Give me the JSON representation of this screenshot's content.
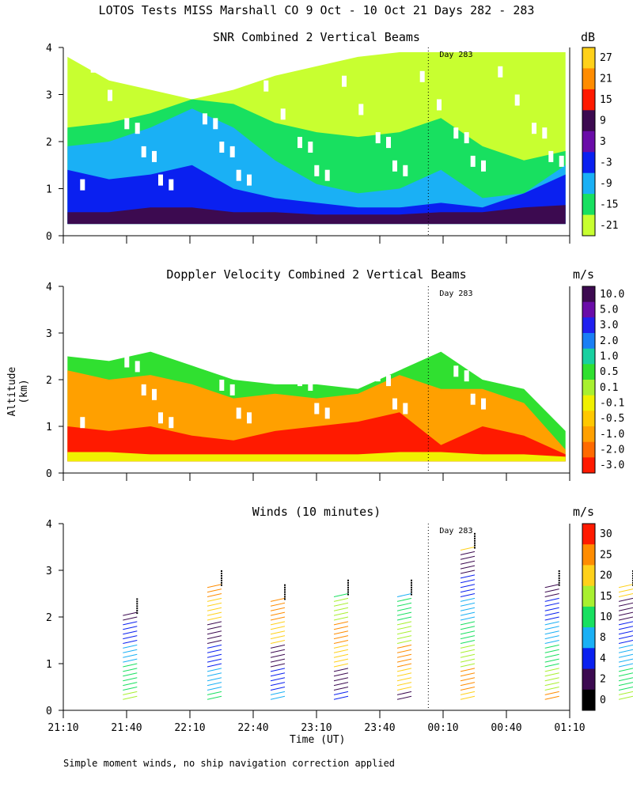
{
  "chart_data": [
    {
      "type": "heatmap",
      "title": "SNR Combined 2 Vertical Beams",
      "unit": "dB",
      "ylim": [
        0,
        4
      ],
      "yticks": [
        "0",
        "1",
        "2",
        "3",
        "4"
      ],
      "colorbar_labels": [
        "27",
        "21",
        "15",
        "9",
        "3",
        "-3",
        "-9",
        "-15",
        "-21"
      ],
      "colorbar_colors": [
        "#ffd11a",
        "#ff8c00",
        "#ff1a00",
        "#3c0a50",
        "#6a0ca8",
        "#0a20f0",
        "#1ab0f5",
        "#18e060",
        "#c8ff30"
      ],
      "marker": "Day 283",
      "layers": [
        {
          "color": "#c8ff30",
          "top_km": [
            3.8,
            3.3,
            3.1,
            2.9,
            3.1,
            3.4,
            3.6,
            3.8,
            3.9,
            3.9,
            3.9,
            3.9,
            3.9
          ]
        },
        {
          "color": "#18e060",
          "top_km": [
            2.3,
            2.4,
            2.6,
            2.9,
            2.8,
            2.4,
            2.2,
            2.1,
            2.2,
            2.5,
            1.9,
            1.6,
            1.8
          ]
        },
        {
          "color": "#1ab0f5",
          "top_km": [
            1.9,
            2.0,
            2.3,
            2.7,
            2.3,
            1.6,
            1.1,
            0.9,
            1.0,
            1.4,
            0.8,
            0.9,
            1.5
          ]
        },
        {
          "color": "#0a20f0",
          "top_km": [
            1.4,
            1.2,
            1.3,
            1.5,
            1.0,
            0.8,
            0.7,
            0.6,
            0.6,
            0.7,
            0.6,
            0.9,
            1.3
          ]
        },
        {
          "color": "#3c0a50",
          "top_km": [
            0.5,
            0.5,
            0.6,
            0.6,
            0.5,
            0.5,
            0.45,
            0.45,
            0.45,
            0.5,
            0.5,
            0.6,
            0.65
          ]
        }
      ]
    },
    {
      "type": "heatmap",
      "title": "Doppler Velocity Combined 2 Vertical Beams",
      "unit": "m/s",
      "ylim": [
        0,
        4
      ],
      "yticks": [
        "0",
        "1",
        "2",
        "3",
        "4"
      ],
      "colorbar_labels": [
        "10.0",
        "5.0",
        "3.0",
        "2.0",
        "1.0",
        "0.5",
        "0.1",
        "-0.1",
        "-0.5",
        "-1.0",
        "-2.0",
        "-3.0"
      ],
      "colorbar_colors": [
        "#3c0a50",
        "#6a0ca8",
        "#2020f0",
        "#1a7ff5",
        "#18d0a0",
        "#30e030",
        "#a8f030",
        "#f0f000",
        "#ffc800",
        "#ffa000",
        "#ff6a00",
        "#ff1a00"
      ],
      "marker": "Day 283",
      "layers": [
        {
          "color": "#30e030",
          "top_km": [
            2.5,
            2.4,
            2.6,
            2.3,
            2.0,
            1.9,
            1.9,
            1.8,
            2.2,
            2.6,
            2.0,
            1.8,
            0.9
          ]
        },
        {
          "color": "#ffa000",
          "top_km": [
            2.2,
            2.0,
            2.1,
            1.9,
            1.6,
            1.7,
            1.6,
            1.7,
            2.1,
            1.8,
            1.8,
            1.5,
            0.5
          ]
        },
        {
          "color": "#ff1a00",
          "top_km": [
            1.0,
            0.9,
            1.0,
            0.8,
            0.7,
            0.9,
            1.0,
            1.1,
            1.3,
            0.6,
            1.0,
            0.8,
            0.4
          ]
        },
        {
          "color": "#f0f000",
          "top_km": [
            0.45,
            0.45,
            0.4,
            0.4,
            0.4,
            0.4,
            0.4,
            0.4,
            0.45,
            0.45,
            0.4,
            0.4,
            0.35
          ]
        }
      ]
    },
    {
      "type": "scatter",
      "title": "Winds (10 minutes)",
      "unit": "m/s",
      "xlabel": "Time (UT)",
      "ylim": [
        0,
        4
      ],
      "yticks": [
        "0",
        "1",
        "2",
        "3",
        "4"
      ],
      "xticks": [
        "21:10",
        "21:40",
        "22:10",
        "22:40",
        "23:10",
        "23:40",
        "00:10",
        "00:40",
        "01:10"
      ],
      "colorbar_labels": [
        "30",
        "25",
        "20",
        "15",
        "10",
        "8",
        "4",
        "2",
        "0"
      ],
      "colorbar_colors": [
        "#ff1a00",
        "#ff8c00",
        "#ffd11a",
        "#a8f030",
        "#18e060",
        "#1ab0f5",
        "#0a20f0",
        "#3c0a50",
        "#000000"
      ],
      "marker": "Day 283",
      "profile_times_min": [
        35,
        75,
        105,
        135,
        165,
        195,
        235,
        270
      ],
      "profile_tops_km": [
        2.4,
        3.0,
        2.7,
        2.8,
        2.8,
        3.8,
        3.0,
        3.0
      ]
    }
  ],
  "header": {
    "title": "LOTOS Tests MISS Marshall CO   9 Oct - 10 Oct 21 Days 282 - 283"
  },
  "axis": {
    "ylabel": "Altitude (km)"
  },
  "footer": "Simple moment winds, no ship navigation correction applied"
}
